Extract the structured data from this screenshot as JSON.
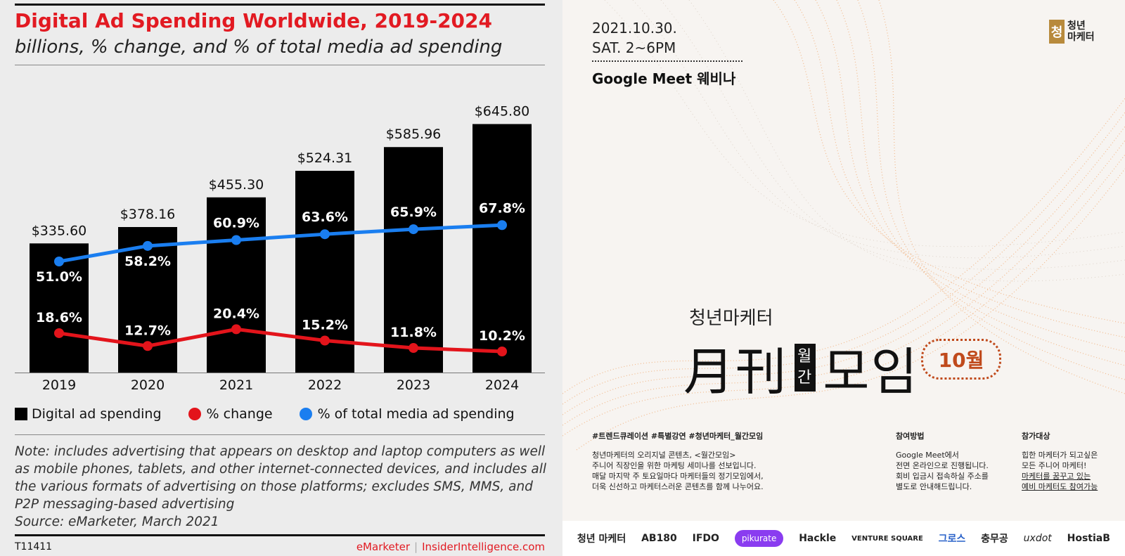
{
  "chart_data": {
    "type": "bar",
    "title": "Digital Ad Spending Worldwide, 2019-2024",
    "subtitle": "billions, % change, and % of total media ad spending",
    "categories": [
      "2019",
      "2020",
      "2021",
      "2022",
      "2023",
      "2024"
    ],
    "series": [
      {
        "name": "Digital ad spending",
        "type": "bar",
        "color": "#000000",
        "values": [
          335.6,
          378.16,
          455.3,
          524.31,
          585.96,
          645.8
        ],
        "labels": [
          "$335.60",
          "$378.16",
          "$455.30",
          "$524.31",
          "$585.96",
          "$645.80"
        ]
      },
      {
        "name": "% change",
        "type": "line",
        "color": "#e3141b",
        "values": [
          18.6,
          12.7,
          20.4,
          15.2,
          11.8,
          10.2
        ],
        "labels": [
          "18.6%",
          "12.7%",
          "20.4%",
          "15.2%",
          "11.8%",
          "10.2%"
        ]
      },
      {
        "name": "% of total media ad spending",
        "type": "line",
        "color": "#1a7ef0",
        "values": [
          51.0,
          58.2,
          60.9,
          63.6,
          65.9,
          67.8
        ],
        "labels": [
          "51.0%",
          "58.2%",
          "60.9%",
          "63.6%",
          "65.9%",
          "67.8%"
        ]
      }
    ],
    "legend": "bottom",
    "grid": false
  },
  "notes": {
    "note": "Note: includes advertising that appears on desktop and laptop computers as well as mobile phones, tablets, and other internet-connected devices, and includes all the various formats of advertising on those platforms; excludes SMS, MMS, and P2P messaging-based advertising",
    "source": "Source: eMarketer, March 2021"
  },
  "footer": {
    "id": "T11411",
    "brand1": "eMarketer",
    "separator": "|",
    "brand2": "InsiderIntelligence.com"
  },
  "poster": {
    "date": "2021.10.30.",
    "time": "SAT. 2~6PM",
    "venue": "Google Meet 웨비나",
    "logo_mark": "청",
    "logo_line1": "청년",
    "logo_line2": "마케터",
    "brand_small": "청년마케터",
    "title_1": "月",
    "title_2": "刊",
    "title_wol": "월",
    "title_gan": "간",
    "title_3": "모임",
    "month": "10월",
    "tags": "#트렌드큐레이션 #특별강연 #청년마케터_월간모임",
    "desc": [
      "청년마케터의 오리지널 콘텐츠, <월간모임>",
      "주니어 직장인을 위한 마케팅 세미나를 선보입니다.",
      "매달 마지막 주 토요일마다 마케터들의 정기모임에서,",
      "더욱 신선하고 마케터스러운 콘텐츠를 함께 나누어요."
    ],
    "how_title": "참여방법",
    "how": [
      "Google Meet에서",
      "전면 온라인으로 진행됩니다.",
      "회비 입금시 접속하실 주소를",
      "별도로 안내해드립니다."
    ],
    "who_title": "참가대상",
    "who": [
      "힙한 마케터가 되고싶은",
      "모든 주니어 마케터!",
      "마케터를 꿈꾸고 있는",
      "예비 마케터도 참여가능"
    ],
    "partners": [
      "청년 마케터",
      "AB180",
      "IFDO",
      "pikurate",
      "Hackle",
      "VENTURE SQUARE",
      "그로스",
      "충무공",
      "uxdot",
      "HostiaB"
    ]
  }
}
